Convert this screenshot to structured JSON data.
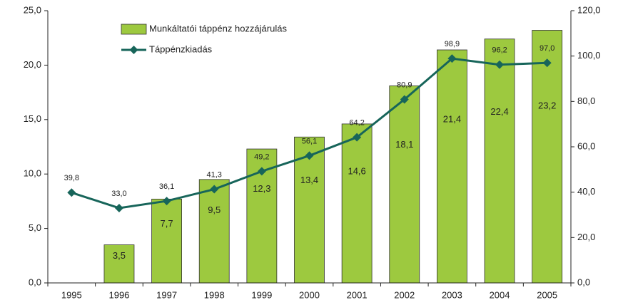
{
  "chart_data": {
    "type": "bar-line",
    "categories": [
      "1995",
      "1996",
      "1997",
      "1998",
      "1999",
      "2000",
      "2001",
      "2002",
      "2003",
      "2004",
      "2005"
    ],
    "series": [
      {
        "name": "Munkáltatói táppénz hozzájárulás",
        "type": "bar",
        "color": "#9dc93f",
        "values": [
          null,
          3.5,
          7.7,
          9.5,
          12.3,
          13.4,
          14.6,
          18.1,
          21.4,
          22.4,
          23.2
        ],
        "value_labels": [
          null,
          "3,5",
          "7,7",
          "9,5",
          "12,3",
          "13,4",
          "14,6",
          "18,1",
          "21,4",
          "22,4",
          "23,2"
        ]
      },
      {
        "name": "Táppénzkiadás",
        "type": "line",
        "axis": "y2",
        "color": "#17655a",
        "values": [
          39.8,
          33.0,
          36.1,
          41.3,
          49.2,
          56.1,
          64.2,
          80.9,
          98.9,
          96.2,
          97.0
        ],
        "value_labels": [
          "39,8",
          "33,0",
          "36,1",
          "41,3",
          "49,2",
          "56,1",
          "64,2",
          "80,9",
          "98,9",
          "96,2",
          "97,0"
        ]
      }
    ],
    "ylim": [
      0,
      25
    ],
    "yticks": [
      {
        "value": 0,
        "label": "0,0"
      },
      {
        "value": 5,
        "label": "5,0"
      },
      {
        "value": 10,
        "label": "10,0"
      },
      {
        "value": 15,
        "label": "15,0"
      },
      {
        "value": 20,
        "label": "20,0"
      },
      {
        "value": 25,
        "label": "25,0"
      }
    ],
    "y2lim": [
      0,
      120
    ],
    "y2ticks": [
      {
        "value": 0,
        "label": "0,0"
      },
      {
        "value": 20,
        "label": "20,0"
      },
      {
        "value": 40,
        "label": "40,0"
      },
      {
        "value": 60,
        "label": "60,0"
      },
      {
        "value": 80,
        "label": "80,0"
      },
      {
        "value": 100,
        "label": "100,0"
      },
      {
        "value": 120,
        "label": "120,0"
      }
    ],
    "legend": "top-left"
  }
}
